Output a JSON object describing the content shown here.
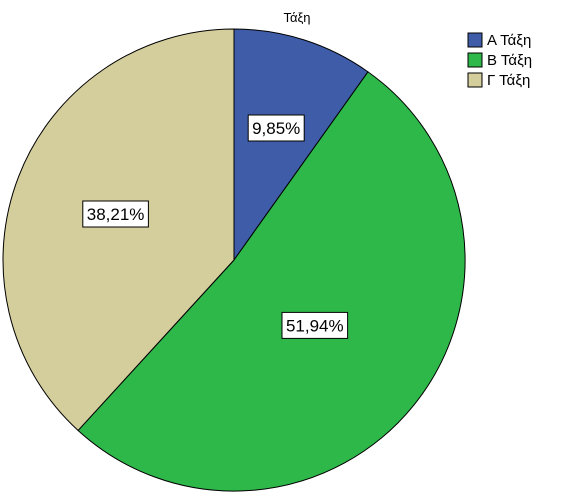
{
  "chart_data": {
    "type": "pie",
    "title": "Τάξη",
    "categories": [
      "Α Τάξη",
      "Β Τάξη",
      "Γ Τάξη"
    ],
    "values": [
      9.85,
      51.94,
      38.21
    ],
    "value_labels": [
      "9,85%",
      "51,94%",
      "38,21%"
    ],
    "colors": [
      "#3f5ca8",
      "#2eb84a",
      "#d4cd9c"
    ],
    "start_angle": "12 o'clock",
    "direction": "clockwise",
    "legend": {
      "position": "top-right",
      "entries": [
        "Α Τάξη",
        "Β Τάξη",
        "Γ Τάξη"
      ]
    }
  }
}
